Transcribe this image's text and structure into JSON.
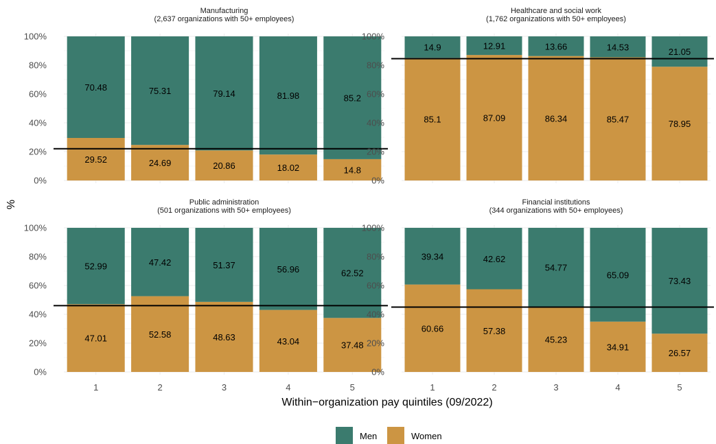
{
  "chart_data": {
    "type": "bar",
    "stacked": true,
    "xlabel": "Within−organization pay quintiles (09/2022)",
    "ylabel": "%",
    "ylim": [
      0,
      100
    ],
    "y_ticks": [
      "0%",
      "20%",
      "40%",
      "60%",
      "80%",
      "100%"
    ],
    "categories": [
      "1",
      "2",
      "3",
      "4",
      "5"
    ],
    "legend": {
      "position": "bottom",
      "entries": [
        {
          "name": "Men",
          "color": "#3b7b6e"
        },
        {
          "name": "Women",
          "color": "#cc9543"
        }
      ]
    },
    "grid": true,
    "facets": [
      {
        "title": "Manufacturing",
        "subtitle": "(2,637 organizations with 50+ employees)",
        "reference_line": 22,
        "series": [
          {
            "name": "Women",
            "values": [
              29.52,
              24.69,
              20.86,
              18.02,
              14.8
            ]
          },
          {
            "name": "Men",
            "values": [
              70.48,
              75.31,
              79.14,
              81.98,
              85.2
            ]
          }
        ]
      },
      {
        "title": "Healthcare and social work",
        "subtitle": "(1,762 organizations with 50+ employees)",
        "reference_line": 84.5,
        "series": [
          {
            "name": "Women",
            "values": [
              85.1,
              87.09,
              86.34,
              85.47,
              78.95
            ]
          },
          {
            "name": "Men",
            "values": [
              14.9,
              12.91,
              13.66,
              14.53,
              21.05
            ]
          }
        ]
      },
      {
        "title": "Public administration",
        "subtitle": "(501 organizations with 50+ employees)",
        "reference_line": 46,
        "series": [
          {
            "name": "Women",
            "values": [
              47.01,
              52.58,
              48.63,
              43.04,
              37.48
            ]
          },
          {
            "name": "Men",
            "values": [
              52.99,
              47.42,
              51.37,
              56.96,
              62.52
            ]
          }
        ]
      },
      {
        "title": "Financial institutions",
        "subtitle": "(344 organizations with 50+ employees)",
        "reference_line": 45,
        "series": [
          {
            "name": "Women",
            "values": [
              60.66,
              57.38,
              45.23,
              34.91,
              26.57
            ]
          },
          {
            "name": "Men",
            "values": [
              39.34,
              42.62,
              54.77,
              65.09,
              73.43
            ]
          }
        ]
      }
    ]
  }
}
